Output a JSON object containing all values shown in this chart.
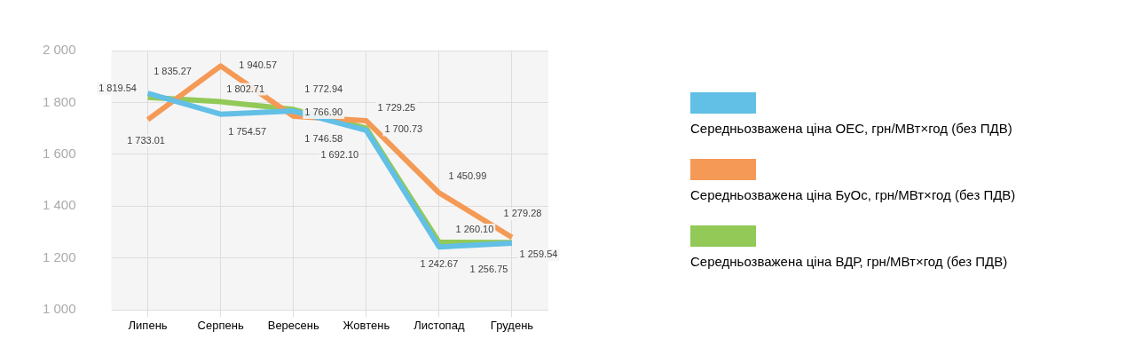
{
  "chart_data": {
    "type": "line",
    "categories": [
      "Липень",
      "Серпень",
      "Вересень",
      "Жовтень",
      "Листопад",
      "Грудень"
    ],
    "series": [
      {
        "name": "Середньозважена ціна ОЕС, грн/МВт×год (без ПДВ)",
        "color": "#62bfe6",
        "values": [
          1835.27,
          1754.57,
          1766.9,
          1692.1,
          1242.67,
          1256.75
        ],
        "value_labels": [
          "1 835.27",
          "1 754.57",
          "1 766.90",
          "1 692.10",
          "1 242.67",
          "1 256.75"
        ]
      },
      {
        "name": "Середньозважена ціна БуОс, грн/МВт×год (без ПДВ)",
        "color": "#f49a56",
        "values": [
          1733.01,
          1940.57,
          1746.58,
          1729.25,
          1450.99,
          1279.28
        ],
        "value_labels": [
          "1 733.01",
          "1 940.57",
          "1 746.58",
          "1 729.25",
          "1 450.99",
          "1 279.28"
        ]
      },
      {
        "name": "Середньозважена ціна ВДР, грн/МВт×год (без ПДВ)",
        "color": "#92c957",
        "values": [
          1819.54,
          1802.71,
          1772.94,
          1700.73,
          1260.1,
          1259.54
        ],
        "value_labels": [
          "1 819.54",
          "1 802.71",
          "1 772.94",
          "1 700.73",
          "1 260.10",
          "1 259.54"
        ]
      }
    ],
    "ylim": [
      1000,
      2000
    ],
    "yticks": [
      {
        "value": 1000,
        "label": "1 000"
      },
      {
        "value": 1200,
        "label": "1 200"
      },
      {
        "value": 1400,
        "label": "1 400"
      },
      {
        "value": 1600,
        "label": "1 600"
      },
      {
        "value": 1800,
        "label": "1 800"
      },
      {
        "value": 2000,
        "label": "2 000"
      }
    ],
    "grid": true,
    "legend": "right",
    "marker": "none",
    "line_style": "solid"
  }
}
